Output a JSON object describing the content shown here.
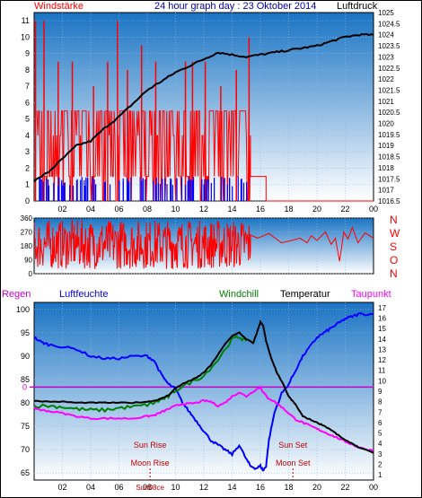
{
  "header": {
    "windstaerke": "Windstärke",
    "title": "24 hour graph day : 23 Oktober 2014",
    "luftdruck": "Luftdruck"
  },
  "colors": {
    "bg_top": "#1a74c4",
    "bg_bottom": "#ffffff",
    "wind": "#ff0000",
    "gust": "#0000ff",
    "pressure": "#000000",
    "humidity": "#0000ff",
    "temperature": "#000000",
    "windchill": "#008000",
    "dewpoint": "#ff00ff",
    "zeroline": "#cc00cc",
    "regen": "#cc00cc",
    "sun_moon": "#c00000"
  },
  "chart_data": [
    {
      "type": "bar",
      "name": "wind",
      "title": "Windstärke",
      "ylabel_right": "Luftdruck",
      "left_ticks": [
        "0",
        "1",
        "2",
        "3",
        "4",
        "5",
        "6",
        "7",
        "8",
        "9",
        "10",
        "11"
      ],
      "left_ylim": [
        0,
        11.5
      ],
      "right_ticks": [
        "1016.5",
        "1017",
        "1017.5",
        "1018",
        "1018.5",
        "1019",
        "1019.5",
        "1020",
        "1020.5",
        "1021",
        "1021.5",
        "1022",
        "1022.5",
        "1023",
        "1023.5",
        "1024",
        "1024.5",
        "1025"
      ],
      "right_ylim": [
        1016.5,
        1025
      ],
      "x_ticks": [
        "02",
        "04",
        "06",
        "08",
        "10",
        "12",
        "14",
        "16",
        "18",
        "20",
        "22",
        "00"
      ],
      "x_range_hours": [
        0,
        24
      ],
      "wind_spikes": [
        {
          "h": 0.1,
          "v": 11
        },
        {
          "h": 0.7,
          "v": 11
        },
        {
          "h": 1.7,
          "v": 8.5
        },
        {
          "h": 2.7,
          "v": 8.5
        },
        {
          "h": 4.2,
          "v": 7
        },
        {
          "h": 5.2,
          "v": 8.5
        },
        {
          "h": 6.6,
          "v": 8
        },
        {
          "h": 7.6,
          "v": 9.5
        },
        {
          "h": 5.9,
          "v": 11
        },
        {
          "h": 8.6,
          "v": 8.5
        },
        {
          "h": 10.7,
          "v": 8.5
        },
        {
          "h": 11.2,
          "v": 8.5
        },
        {
          "h": 12.1,
          "v": 8.5
        },
        {
          "h": 13.2,
          "v": 7
        },
        {
          "h": 14.3,
          "v": 8
        },
        {
          "h": 15.2,
          "v": 10
        }
      ],
      "wind_band": {
        "from": 0.2,
        "to": 15.3,
        "level_low": 1.5,
        "level_high": 5.5
      },
      "wind_tail": {
        "from": 15.3,
        "to": 16.4,
        "level": 1.5,
        "end": 24
      },
      "gust_band": {
        "from": 0.2,
        "to": 15.2,
        "level": 1.5
      },
      "pressure": {
        "x": [
          0,
          1,
          2,
          3,
          4,
          5,
          6,
          7,
          8,
          9,
          10,
          11,
          12,
          13,
          14,
          15,
          16,
          17,
          18,
          19,
          20,
          21,
          22,
          23,
          24
        ],
        "y": [
          1017.4,
          1017.8,
          1018.4,
          1019.0,
          1019.2,
          1019.8,
          1020.3,
          1020.9,
          1021.5,
          1021.9,
          1022.3,
          1022.6,
          1022.9,
          1023.2,
          1023.1,
          1023.0,
          1023.1,
          1023.2,
          1023.3,
          1023.4,
          1023.5,
          1023.7,
          1023.9,
          1024.0,
          1024.0
        ]
      }
    },
    {
      "type": "line",
      "name": "wind_direction",
      "left_ticks": [
        "0",
        "90",
        "180",
        "270",
        "360"
      ],
      "ylim": [
        0,
        360
      ],
      "right_labels": [
        "N",
        "W",
        "S",
        "O",
        "N"
      ],
      "x_range_hours": [
        0,
        24
      ],
      "noisy_until": 15.3
    },
    {
      "type": "line",
      "name": "temperature_humidity",
      "legend": {
        "regen": "Regen",
        "humidity": "Luftfeuchte",
        "windchill": "Windchill",
        "temperature": "Temperatur",
        "dewpoint": "Taupunkt"
      },
      "left_ticks": [
        "65",
        "70",
        "75",
        "80",
        "85",
        "90",
        "95",
        "100"
      ],
      "left_ylim": [
        63.5,
        101.5
      ],
      "right_ticks": [
        "1",
        "2",
        "3",
        "4",
        "5",
        "6",
        "7",
        "8",
        "9",
        "10",
        "11",
        "12",
        "13",
        "14",
        "15",
        "16",
        "17"
      ],
      "right_ylim": [
        0.5,
        17.5
      ],
      "zero_label": "0",
      "zero_level_right": 9.4,
      "x_ticks": [
        "02",
        "04",
        "06",
        "08",
        "10",
        "12",
        "14",
        "16",
        "18",
        "20",
        "22",
        "00"
      ],
      "x_range_hours": [
        0,
        24
      ],
      "annotations": {
        "sun_rise": {
          "text": "Sun Rise",
          "h": 8.2
        },
        "sun_set": {
          "text": "Sun Set",
          "h": 18.3
        },
        "moon_rise": {
          "text": "Moon Rise",
          "h": 8.2
        },
        "moon_set": {
          "text": "Moon Set",
          "h": 18.3
        },
        "bottom_sunrise": "Sun08ce"
      },
      "humidity": {
        "x": [
          0,
          0.5,
          1,
          2,
          3,
          4,
          5,
          6,
          7,
          8,
          8.5,
          9,
          9.5,
          10,
          10.5,
          11,
          11.5,
          12,
          12.5,
          13,
          13.5,
          14,
          14.5,
          15,
          15.3,
          15.7,
          16,
          16.2,
          16.4,
          16.6,
          17,
          17.5,
          18,
          18.5,
          19,
          19.5,
          20,
          20.5,
          21,
          21.5,
          22,
          22.5,
          23,
          24
        ],
        "y": [
          94,
          93,
          92.5,
          92,
          91.5,
          90,
          89.5,
          89.5,
          90,
          90,
          89,
          86,
          84,
          83,
          80,
          78,
          76,
          74,
          72,
          71,
          70,
          69,
          71,
          68,
          66.5,
          66,
          66.5,
          65.5,
          66.5,
          72,
          78,
          82,
          84,
          87,
          90,
          92,
          94,
          95,
          96,
          97,
          98,
          98.5,
          99,
          99
        ]
      },
      "temperature": {
        "x": [
          0,
          1,
          2,
          3,
          4,
          5,
          6,
          7,
          8,
          8.5,
          9,
          9.5,
          10,
          10.5,
          11,
          11.5,
          12,
          12.5,
          13,
          13.5,
          14,
          14.5,
          15,
          15.5,
          15.8,
          16,
          16.2,
          16.4,
          16.8,
          17.2,
          17.6,
          18,
          18.5,
          19,
          19.5,
          20,
          20.5,
          21,
          21.5,
          22,
          22.5,
          23,
          24
        ],
        "y": [
          8.1,
          8.0,
          8.0,
          7.9,
          7.9,
          7.9,
          7.9,
          7.9,
          8.0,
          8.1,
          8.3,
          8.6,
          9.3,
          9.7,
          10.0,
          10.3,
          10.8,
          11.5,
          12.5,
          13.5,
          14.3,
          14.6,
          14.0,
          13.6,
          14.8,
          15.6,
          15.3,
          13.8,
          12.0,
          10.7,
          9.7,
          8.5,
          7.7,
          6.6,
          6.3,
          6.0,
          5.7,
          5.3,
          4.8,
          4.3,
          4.0,
          3.6,
          3.1
        ]
      },
      "windchill": {
        "x": [
          0,
          1,
          2,
          3,
          4,
          5,
          6,
          7,
          8,
          8.5,
          9,
          9.5,
          10,
          11,
          12,
          13,
          14,
          14.5,
          15
        ],
        "y": [
          7.6,
          7.6,
          7.5,
          7.3,
          7.2,
          7.2,
          7.4,
          7.5,
          7.7,
          7.9,
          8.2,
          8.5,
          9.1,
          9.8,
          10.5,
          12.0,
          14.0,
          14.2,
          13.8
        ]
      },
      "dewpoint": {
        "x": [
          0,
          0.5,
          1,
          2,
          3,
          4,
          5,
          6,
          7,
          8,
          8.5,
          9,
          9.5,
          10,
          10.5,
          11,
          11.5,
          12,
          12.5,
          13,
          13.5,
          14,
          14.5,
          15,
          15.5,
          16,
          16.2,
          16.5,
          17,
          17.5,
          18,
          18.5,
          19,
          19.5,
          20,
          20.5,
          21,
          21.5,
          22,
          22.5,
          23,
          24
        ],
        "y": [
          7.4,
          7.2,
          7.1,
          6.9,
          6.6,
          6.4,
          6.4,
          6.4,
          6.4,
          6.6,
          6.7,
          7.0,
          7.3,
          7.6,
          7.8,
          7.8,
          7.9,
          8.1,
          8.0,
          7.6,
          7.9,
          8.5,
          8.9,
          8.5,
          9.0,
          9.4,
          8.9,
          8.4,
          8.0,
          7.5,
          6.9,
          6.3,
          6.0,
          5.7,
          5.4,
          5.1,
          4.8,
          4.5,
          4.2,
          3.9,
          3.6,
          3.3
        ]
      }
    }
  ]
}
